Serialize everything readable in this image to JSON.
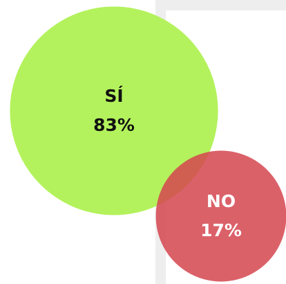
{
  "chart_data": {
    "type": "bubble",
    "categories": [
      "SÍ",
      "NO"
    ],
    "values": [
      83,
      17
    ],
    "value_labels": [
      "83%",
      "17%"
    ],
    "colors": [
      "#b3f25c",
      "#d5454f"
    ]
  }
}
